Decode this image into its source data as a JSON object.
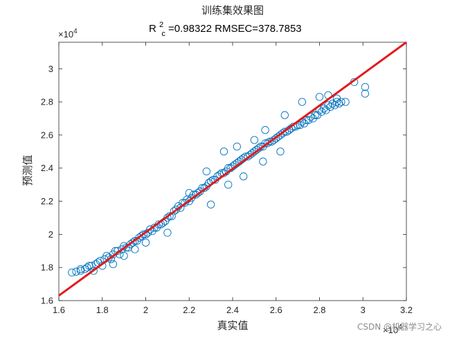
{
  "chart_data": {
    "type": "scatter",
    "title": "训练集效果图",
    "subtitle": {
      "r_base": "R",
      "r_sup": "2",
      "r_sub": "c",
      "rest": "=0.98322  RMSEC=378.7853"
    },
    "xlabel": "真实值",
    "ylabel": "预测值",
    "x_multiplier": "×10",
    "x_exponent": "4",
    "y_multiplier": "×10",
    "y_exponent": "4",
    "xlim": [
      1.6,
      3.2
    ],
    "ylim": [
      1.6,
      3.16
    ],
    "x_ticks": [
      "1.6",
      "1.8",
      "2",
      "2.2",
      "2.4",
      "2.6",
      "2.8",
      "3",
      "3.2"
    ],
    "y_ticks": [
      "1.6",
      "1.8",
      "2",
      "2.2",
      "2.4",
      "2.6",
      "2.8",
      "3"
    ],
    "grid": false,
    "scatter_color": "#0072BD",
    "line_color": "#E31A1C",
    "line": {
      "x": [
        1.6,
        3.2
      ],
      "y": [
        1.63,
        3.16
      ]
    },
    "series": [
      {
        "x": [
          1.66,
          1.68,
          1.7,
          1.72,
          1.73,
          1.75,
          1.77,
          1.79,
          1.81,
          1.83,
          1.85,
          1.87,
          1.89,
          1.91,
          1.93,
          1.95,
          1.97,
          1.99,
          2.01,
          2.03,
          2.05,
          2.07,
          2.09,
          2.11,
          2.13,
          2.15,
          2.17,
          2.19,
          2.21,
          2.23,
          2.25,
          2.27,
          2.29,
          2.31,
          2.33,
          2.35,
          2.37,
          2.39,
          2.41,
          2.43,
          2.45,
          2.47,
          2.49,
          2.51,
          2.53,
          2.55,
          2.57,
          2.59,
          2.61,
          2.63,
          2.65,
          2.67,
          2.69,
          2.71,
          2.73,
          2.75,
          2.77,
          2.79,
          2.81,
          2.83,
          2.85,
          2.87,
          2.89,
          1.7,
          1.74,
          1.78,
          1.82,
          1.86,
          1.9,
          1.94,
          1.98,
          2.02,
          2.06,
          2.1,
          2.14,
          2.18,
          2.22,
          2.26,
          2.3,
          2.34,
          2.38,
          2.42,
          2.46,
          2.5,
          2.54,
          2.58,
          2.62,
          2.66,
          2.7,
          2.74,
          2.78,
          2.82,
          2.86,
          2.9,
          1.76,
          1.8,
          1.84,
          1.88,
          1.92,
          1.96,
          2,
          2.04,
          2.08,
          2.12,
          2.16,
          2.2,
          2.24,
          2.28,
          2.32,
          2.36,
          2.4,
          2.44,
          2.48,
          2.52,
          2.56,
          2.6,
          2.64,
          2.68,
          2.72,
          2.76,
          2.8,
          2.84,
          2.88,
          1.85,
          1.9,
          2.0,
          2.2,
          2.28,
          2.36,
          2.42,
          2.5,
          2.55,
          2.64,
          2.72,
          2.8,
          2.84,
          2.88,
          2.96,
          3.01,
          3.01,
          2.92,
          2.45,
          2.38,
          2.3,
          2.1,
          1.95,
          2.54,
          2.62
        ],
        "y": [
          1.77,
          1.775,
          1.78,
          1.79,
          1.8,
          1.81,
          1.82,
          1.84,
          1.85,
          1.86,
          1.88,
          1.9,
          1.91,
          1.92,
          1.94,
          1.96,
          1.98,
          2.0,
          2.01,
          2.02,
          2.04,
          2.06,
          2.08,
          2.11,
          2.14,
          2.17,
          2.19,
          2.21,
          2.22,
          2.24,
          2.26,
          2.28,
          2.31,
          2.33,
          2.35,
          2.37,
          2.38,
          2.4,
          2.42,
          2.44,
          2.46,
          2.47,
          2.49,
          2.51,
          2.53,
          2.55,
          2.56,
          2.57,
          2.59,
          2.61,
          2.62,
          2.64,
          2.65,
          2.66,
          2.67,
          2.69,
          2.7,
          2.72,
          2.74,
          2.75,
          2.77,
          2.78,
          2.79,
          1.79,
          1.81,
          1.83,
          1.87,
          1.9,
          1.93,
          1.95,
          1.99,
          2.03,
          2.06,
          2.1,
          2.15,
          2.19,
          2.24,
          2.28,
          2.32,
          2.36,
          2.4,
          2.43,
          2.47,
          2.5,
          2.53,
          2.56,
          2.6,
          2.63,
          2.66,
          2.69,
          2.72,
          2.76,
          2.79,
          2.8,
          1.78,
          1.81,
          1.85,
          1.88,
          1.92,
          1.96,
          2.0,
          2.04,
          2.07,
          2.11,
          2.16,
          2.2,
          2.25,
          2.29,
          2.33,
          2.37,
          2.41,
          2.45,
          2.48,
          2.52,
          2.55,
          2.58,
          2.62,
          2.65,
          2.68,
          2.71,
          2.75,
          2.78,
          2.8,
          1.82,
          1.87,
          1.95,
          2.25,
          2.38,
          2.5,
          2.53,
          2.57,
          2.63,
          2.72,
          2.8,
          2.83,
          2.84,
          2.82,
          2.92,
          2.89,
          2.85,
          2.8,
          2.35,
          2.3,
          2.18,
          2.01,
          1.91,
          2.44,
          2.5
        ]
      }
    ]
  },
  "watermark": "CSDN @机器学习之心"
}
